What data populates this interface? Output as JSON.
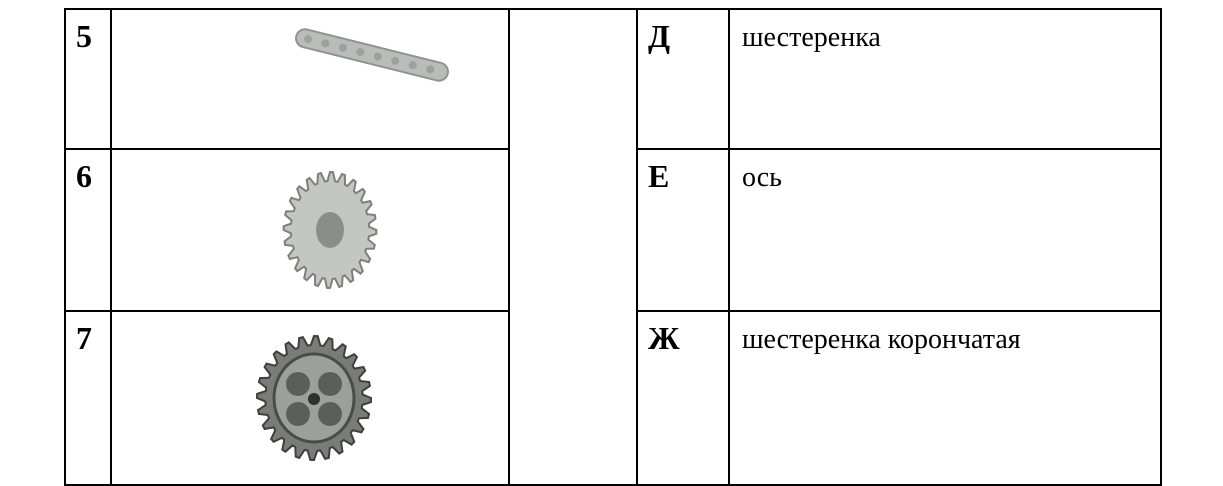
{
  "table": {
    "rows": [
      {
        "number": "5",
        "letter": "Д",
        "text": "шестеренка"
      },
      {
        "number": "6",
        "letter": "Е",
        "text": "ось"
      },
      {
        "number": "7",
        "letter": "Ж",
        "text": "шестеренка корончатая"
      }
    ]
  }
}
